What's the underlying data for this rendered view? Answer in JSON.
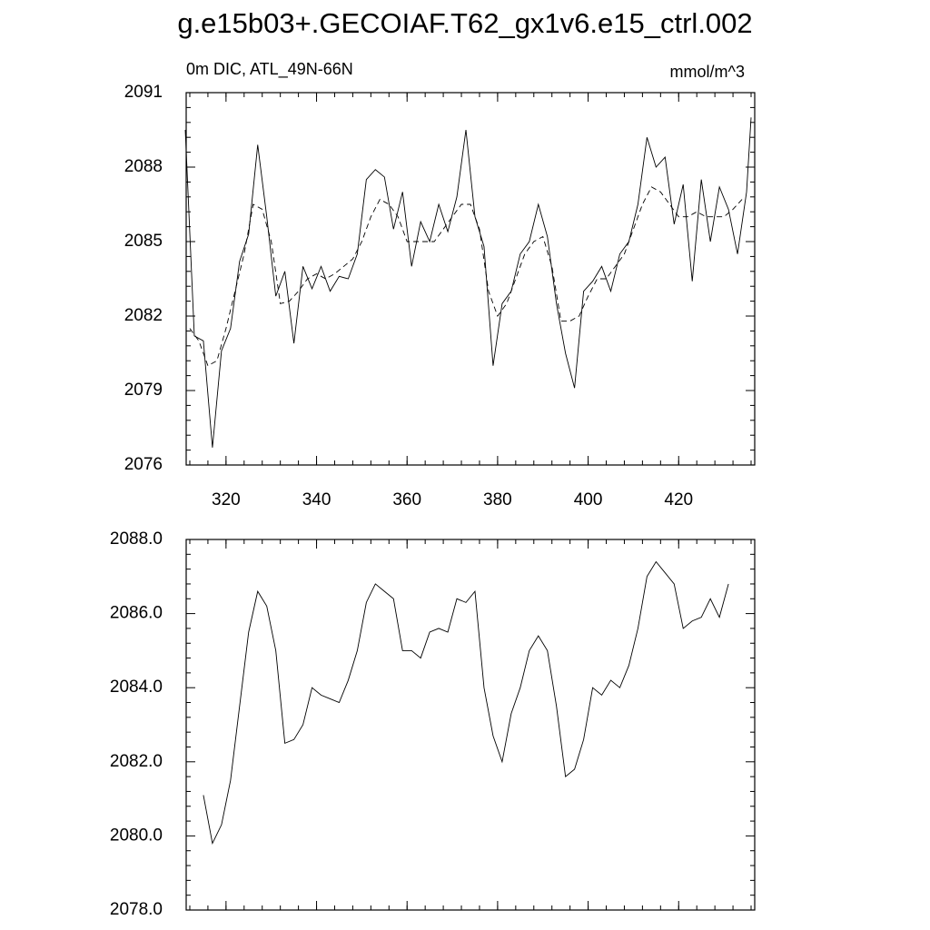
{
  "chart_data": [
    {
      "type": "line",
      "title": "g.e15b03+.GECOIAF.T62_gx1v6.e15_ctrl.002",
      "left_string": "0m DIC, ATL_49N-66N",
      "right_string": "mmol/m^3",
      "xlim": [
        311.2,
        436.8
      ],
      "xticks": [
        320,
        340,
        360,
        380,
        400,
        420
      ],
      "ylim": [
        2076,
        2091
      ],
      "yticks": [
        2076,
        2079,
        2082,
        2085,
        2088,
        2091
      ],
      "series": [
        {
          "color": "#000000",
          "dashed": false,
          "x": [
            311,
            313,
            315,
            317,
            319,
            321,
            323,
            325,
            327,
            329,
            331,
            333,
            335,
            337,
            339,
            341,
            343,
            345,
            347,
            349,
            351,
            353,
            355,
            357,
            359,
            361,
            363,
            365,
            367,
            369,
            371,
            373,
            375,
            377,
            379,
            381,
            383,
            385,
            387,
            389,
            391,
            393,
            395,
            397,
            399,
            401,
            403,
            405,
            407,
            409,
            411,
            413,
            415,
            417,
            419,
            421,
            423,
            425,
            427,
            429,
            431,
            433,
            435,
            436
          ],
          "values": [
            2089.5,
            2081.2,
            2081.0,
            2076.7,
            2080.6,
            2081.5,
            2084.2,
            2085.3,
            2088.9,
            2086.0,
            2082.8,
            2083.8,
            2080.9,
            2084.0,
            2083.1,
            2084.0,
            2083.0,
            2083.6,
            2083.5,
            2084.5,
            2087.5,
            2087.9,
            2087.6,
            2085.5,
            2087.0,
            2084.0,
            2085.8,
            2085.0,
            2086.5,
            2085.4,
            2086.8,
            2089.5,
            2086.0,
            2084.8,
            2080.0,
            2082.5,
            2083.0,
            2084.5,
            2085.0,
            2086.5,
            2085.2,
            2082.5,
            2080.5,
            2079.1,
            2083.0,
            2083.4,
            2084.0,
            2083.0,
            2084.5,
            2085.0,
            2086.5,
            2089.2,
            2088.0,
            2088.4,
            2085.7,
            2087.3,
            2083.4,
            2087.5,
            2085.0,
            2087.2,
            2086.3,
            2084.5,
            2087.0,
            2090.0
          ]
        },
        {
          "color": "#000000",
          "dashed": true,
          "x": [
            312,
            314,
            316,
            318,
            320,
            322,
            324,
            326,
            328,
            330,
            332,
            334,
            336,
            338,
            340,
            342,
            344,
            346,
            348,
            350,
            352,
            354,
            356,
            358,
            360,
            362,
            364,
            366,
            368,
            370,
            372,
            374,
            376,
            378,
            380,
            382,
            384,
            386,
            388,
            390,
            392,
            394,
            396,
            398,
            400,
            402,
            404,
            406,
            408,
            410,
            412,
            414,
            416,
            418,
            420,
            422,
            424,
            426,
            428,
            430,
            432,
            434
          ],
          "values": [
            2081.5,
            2081.0,
            2080.0,
            2080.2,
            2081.5,
            2083.0,
            2084.5,
            2086.5,
            2086.3,
            2085.0,
            2082.5,
            2082.6,
            2083.0,
            2083.5,
            2083.7,
            2083.5,
            2083.7,
            2084.0,
            2084.3,
            2085.0,
            2086.0,
            2086.7,
            2086.5,
            2086.0,
            2085.0,
            2085.0,
            2085.0,
            2085.0,
            2085.5,
            2086.0,
            2086.5,
            2086.5,
            2085.5,
            2083.0,
            2082.0,
            2082.5,
            2083.5,
            2084.5,
            2085.0,
            2085.2,
            2084.0,
            2081.8,
            2081.8,
            2082.0,
            2082.8,
            2083.5,
            2083.5,
            2084.0,
            2084.5,
            2085.5,
            2086.5,
            2087.2,
            2087.0,
            2086.5,
            2086.0,
            2086.0,
            2086.2,
            2086.0,
            2086.0,
            2086.0,
            2086.3,
            2086.7
          ]
        }
      ]
    },
    {
      "type": "line",
      "xlim": [
        311.2,
        436.8
      ],
      "ylim": [
        2078,
        2088
      ],
      "yticks": [
        {
          "value": 2078,
          "label": "2078.0"
        },
        {
          "value": 2080,
          "label": "2080.0"
        },
        {
          "value": 2082,
          "label": "2082.0"
        },
        {
          "value": 2084,
          "label": "2084.0"
        },
        {
          "value": 2086,
          "label": "2086.0"
        },
        {
          "value": 2088,
          "label": "2088.0"
        }
      ],
      "series": [
        {
          "color": "#000000",
          "dashed": false,
          "x": [
            315,
            317,
            319,
            321,
            323,
            325,
            327,
            329,
            331,
            333,
            335,
            337,
            339,
            341,
            343,
            345,
            347,
            349,
            351,
            353,
            355,
            357,
            359,
            361,
            363,
            365,
            367,
            369,
            371,
            373,
            375,
            377,
            379,
            381,
            383,
            385,
            387,
            389,
            391,
            393,
            395,
            397,
            399,
            401,
            403,
            405,
            407,
            409,
            411,
            413,
            415,
            417,
            419,
            421,
            423,
            425,
            427,
            429,
            431
          ],
          "values": [
            2081.1,
            2079.8,
            2080.3,
            2081.5,
            2083.5,
            2085.5,
            2086.6,
            2086.2,
            2085.0,
            2082.5,
            2082.6,
            2083.0,
            2084.0,
            2083.8,
            2083.7,
            2083.6,
            2084.2,
            2085.0,
            2086.3,
            2086.8,
            2086.6,
            2086.4,
            2085.0,
            2085.0,
            2084.8,
            2085.5,
            2085.6,
            2085.5,
            2086.4,
            2086.3,
            2086.6,
            2084.0,
            2082.7,
            2082.0,
            2083.3,
            2084.0,
            2085.0,
            2085.4,
            2085.0,
            2083.5,
            2081.6,
            2081.8,
            2082.6,
            2084.0,
            2083.8,
            2084.2,
            2084.0,
            2084.6,
            2085.6,
            2087.0,
            2087.4,
            2087.1,
            2086.8,
            2085.6,
            2085.8,
            2085.9,
            2086.4,
            2085.9,
            2086.8
          ]
        }
      ]
    }
  ]
}
